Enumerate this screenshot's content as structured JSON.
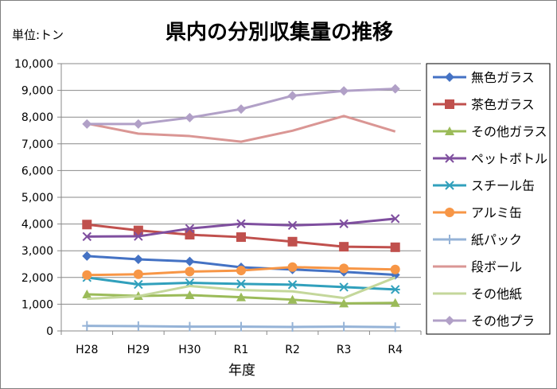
{
  "chart_data": {
    "type": "line",
    "title": "県内の分別収集量の推移",
    "unit_label": "単位:トン",
    "xlabel": "年度",
    "ylabel": "",
    "categories": [
      "H28",
      "H29",
      "H30",
      "R1",
      "R2",
      "R3",
      "R4"
    ],
    "ylim": [
      0,
      10000
    ],
    "yticks": [
      0,
      1000,
      2000,
      3000,
      4000,
      5000,
      6000,
      7000,
      8000,
      9000,
      10000
    ],
    "ytick_labels": [
      "0",
      "1,000",
      "2,000",
      "3,000",
      "4,000",
      "5,000",
      "6,000",
      "7,000",
      "8,000",
      "9,000",
      "10,000"
    ],
    "grid": "horizontal",
    "legend_position": "right",
    "series": [
      {
        "name": "無色ガラス",
        "color": "#4472C4",
        "marker": "diamond",
        "values": [
          2800,
          2680,
          2600,
          2380,
          2300,
          2210,
          2100
        ]
      },
      {
        "name": "茶色ガラス",
        "color": "#C0504D",
        "marker": "square",
        "values": [
          3980,
          3760,
          3600,
          3510,
          3340,
          3150,
          3130
        ]
      },
      {
        "name": "その他ガラス",
        "color": "#9BBB59",
        "marker": "triangle",
        "values": [
          1370,
          1310,
          1340,
          1260,
          1170,
          1030,
          1050
        ]
      },
      {
        "name": "ペットボトル",
        "color": "#7F4F9F",
        "marker": "x",
        "values": [
          3530,
          3540,
          3830,
          4010,
          3950,
          4010,
          4200
        ]
      },
      {
        "name": "スチール缶",
        "color": "#31A0BC",
        "marker": "asterisk",
        "values": [
          2000,
          1740,
          1800,
          1760,
          1730,
          1640,
          1550
        ]
      },
      {
        "name": "アルミ缶",
        "color": "#F79646",
        "marker": "circle",
        "values": [
          2090,
          2120,
          2220,
          2260,
          2390,
          2340,
          2300
        ]
      },
      {
        "name": "紙パック",
        "color": "#95B3D7",
        "marker": "plus",
        "values": [
          190,
          180,
          160,
          160,
          150,
          160,
          140
        ]
      },
      {
        "name": "段ボール",
        "color": "#DA9694",
        "marker": "none",
        "values": [
          7760,
          7380,
          7290,
          7080,
          7490,
          8040,
          7460
        ]
      },
      {
        "name": "その他紙",
        "color": "#C4D79B",
        "marker": "none",
        "values": [
          1200,
          1300,
          1680,
          1530,
          1480,
          1230,
          2000
        ]
      },
      {
        "name": "その他プラ",
        "color": "#B1A0C7",
        "marker": "diamond",
        "values": [
          7740,
          7740,
          7980,
          8300,
          8800,
          8980,
          9060
        ]
      }
    ]
  }
}
